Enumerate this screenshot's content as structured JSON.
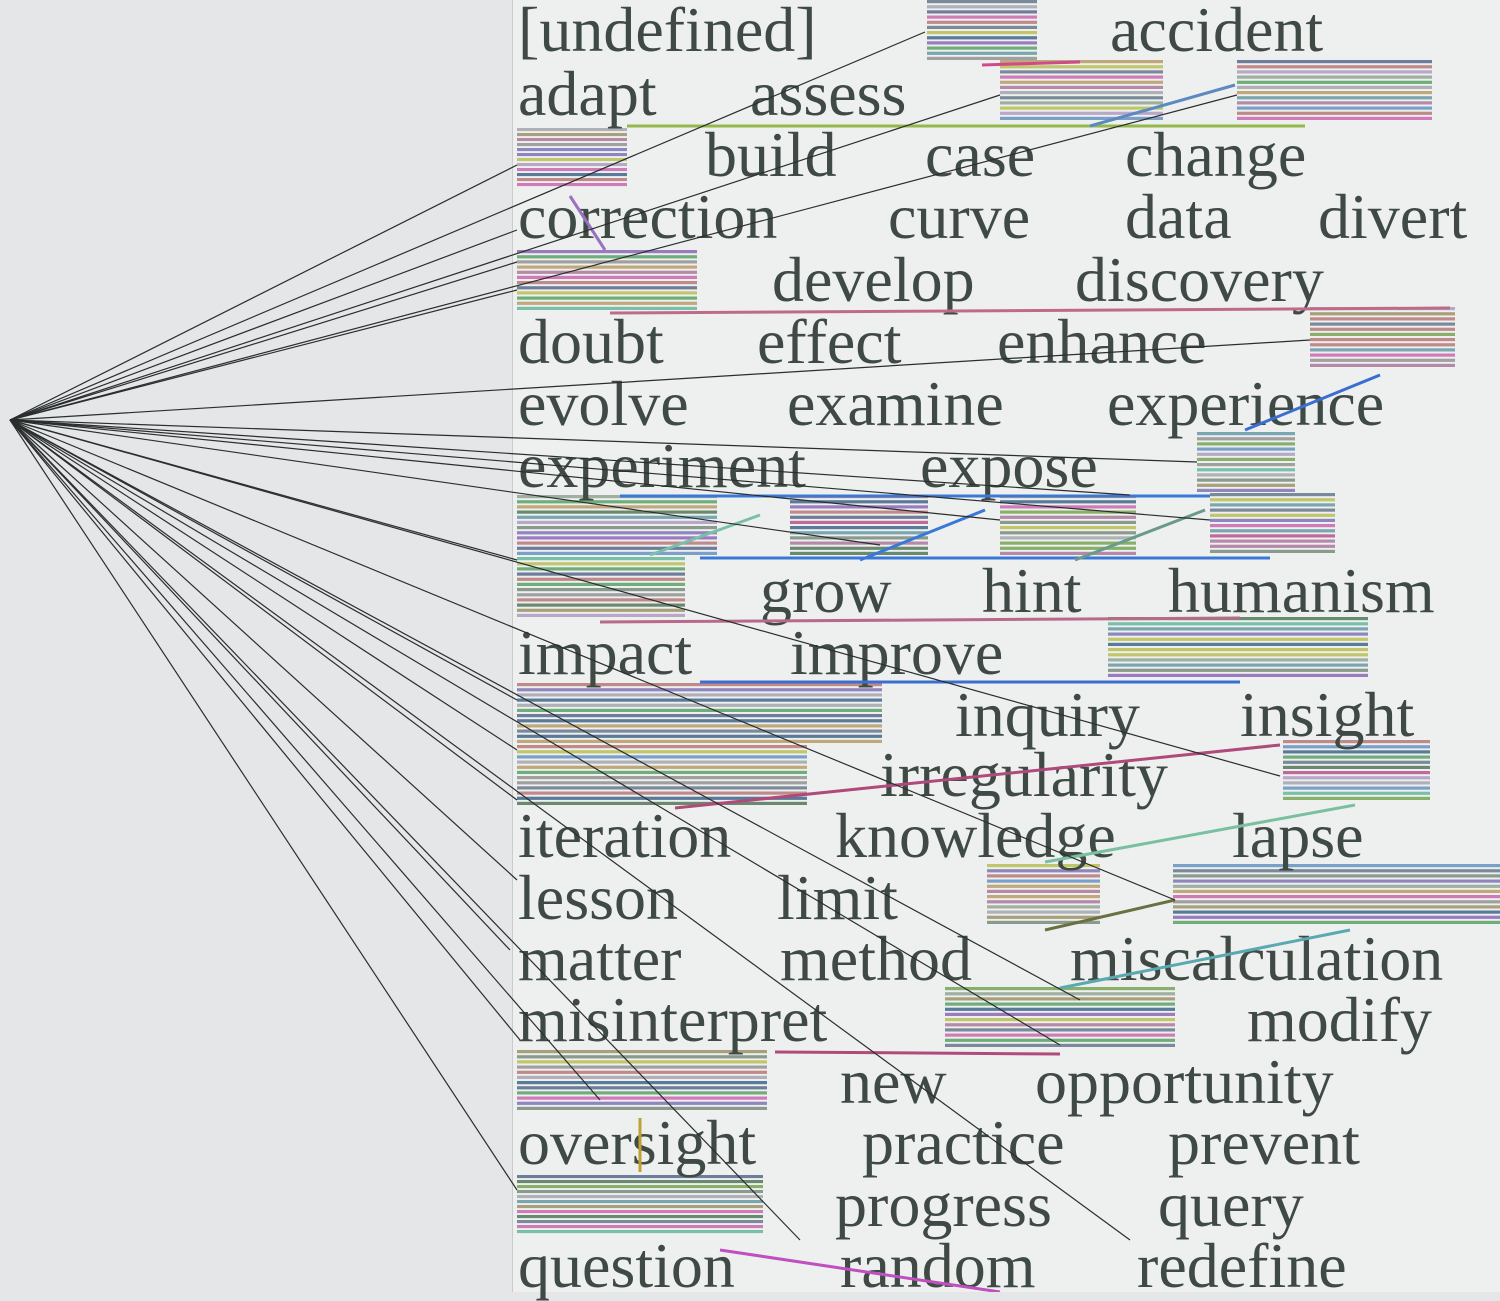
{
  "words": [
    "[undefined]",
    "accident",
    "adapt",
    "assess",
    "build",
    "case",
    "change",
    "correction",
    "curve",
    "data",
    "divert",
    "develop",
    "discovery",
    "doubt",
    "effect",
    "enhance",
    "evolve",
    "examine",
    "experience",
    "experiment",
    "expose",
    "grow",
    "hint",
    "humanism",
    "impact",
    "improve",
    "inquiry",
    "insight",
    "irregularity",
    "iteration",
    "knowledge",
    "lapse",
    "lesson",
    "limit",
    "matter",
    "method",
    "miscalculation",
    "misinterpret",
    "modify",
    "new",
    "opportunity",
    "oversight",
    "practice",
    "prevent",
    "progress",
    "query",
    "question",
    "random",
    "redefine"
  ],
  "colors": {
    "background": "#e4e6e7",
    "paper": "#eef0f0",
    "text": "#3f4a45",
    "lines": "#2a2e2d"
  }
}
